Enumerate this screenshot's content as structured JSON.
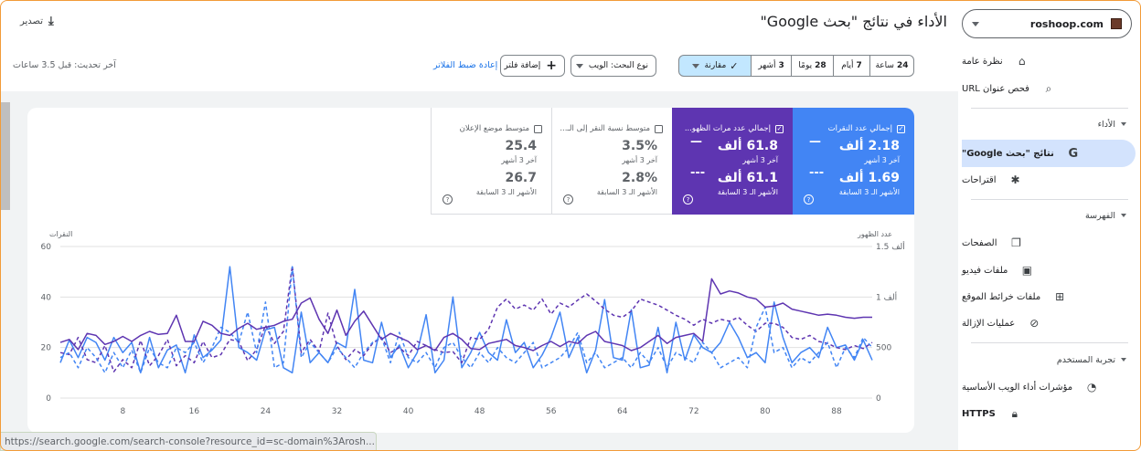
{
  "property": {
    "name": "roshoop.com"
  },
  "sidebar": {
    "overview": "نظرة عامة",
    "url_inspection": "فحص عنوان URL",
    "section_performance": "الأداء",
    "search_results": "نتائج \"بحث Google\"",
    "discover": "اقتراحات",
    "section_indexing": "الفهرسة",
    "pages": "الصفحات",
    "videos": "ملفات فيديو",
    "sitemaps": "ملفات خرائط الموقع",
    "removals": "عمليات الإزالة",
    "section_experience": "تجربة المستخدم",
    "cwv": "مؤشرات أداء الويب الأساسية",
    "https": "HTTPS"
  },
  "header": {
    "title": "الأداء في نتائج \"بحث Google\"",
    "export": "تصدير",
    "last_updated": "آخر تحديث: قبل 3.5 ساعات"
  },
  "filters": {
    "date_ranges": [
      {
        "num": "24",
        "unit": "ساعة"
      },
      {
        "num": "7",
        "unit": "أيام"
      },
      {
        "num": "28",
        "unit": "يومًا"
      },
      {
        "num": "3",
        "unit": "أشهر"
      }
    ],
    "compare": "مقارنة",
    "search_type": "نوع البحث: الويب",
    "add_filter": "إضافة فلتر",
    "reset": "إعادة ضبط الفلاتر"
  },
  "metrics": {
    "clicks": {
      "label": "إجمالي عدد النقرات",
      "value": "2.18 ألف",
      "period": "آخر 3 أشهر",
      "prev_value": "1.69 ألف",
      "prev_period": "الأشهر الـ 3 السابقة"
    },
    "impressions": {
      "label": "إجمالي عدد مرات الظهو...",
      "value": "61.8 ألف",
      "period": "آخر 3 أشهر",
      "prev_value": "61.1 ألف",
      "prev_period": "الأشهر الـ 3 السابقة"
    },
    "ctr": {
      "label": "متوسط نسبة النقر إلى الـ...",
      "value": "3.5%",
      "period": "آخر 3 أشهر",
      "prev_value": "2.8%",
      "prev_period": "الأشهر الـ 3 السابقة"
    },
    "position": {
      "label": "متوسط موضع الإعلان",
      "value": "25.4",
      "period": "آخر 3 أشهر",
      "prev_value": "26.7",
      "prev_period": "الأشهر الـ 3 السابقة"
    }
  },
  "chart_data": {
    "type": "line",
    "left_axis_label": "النقرات",
    "right_axis_label": "عدد الظهور",
    "left_ticks": [
      "60",
      "40",
      "20",
      "0"
    ],
    "right_ticks": [
      "1.5 ألف",
      "1 ألف",
      "500",
      "0"
    ],
    "x_ticks": [
      "8",
      "16",
      "24",
      "32",
      "40",
      "48",
      "56",
      "64",
      "72",
      "80",
      "88"
    ],
    "x_range": [
      1,
      92
    ],
    "ylim_clicks": [
      0,
      60
    ],
    "ylim_impressions": [
      0,
      1500
    ],
    "colors": {
      "clicks": "#4285f4",
      "impressions": "#5e35b1"
    },
    "series": [
      {
        "key": "clicks",
        "values": [
          14,
          23,
          16,
          24,
          22,
          15,
          24,
          18,
          22,
          10,
          24,
          12,
          19,
          21,
          10,
          25,
          16,
          19,
          23,
          52,
          20,
          18,
          15,
          27,
          28,
          12,
          10,
          34,
          14,
          18,
          14,
          22,
          20,
          43,
          15,
          14,
          30,
          16,
          21,
          12,
          18,
          33,
          10,
          15,
          40,
          12,
          18,
          26,
          18,
          15,
          31,
          18,
          22,
          12,
          17,
          24,
          34,
          16,
          24,
          10,
          19,
          39,
          16,
          15,
          35,
          12,
          13,
          28,
          10,
          30,
          15,
          25,
          20,
          18,
          22,
          30,
          24,
          16,
          18,
          14,
          38,
          24,
          14,
          18,
          20,
          16,
          28,
          20,
          21,
          15,
          23,
          15
        ]
      },
      {
        "key": "impressions",
        "dashed": true,
        "values": [
          450,
          430,
          600,
          380,
          350,
          520,
          260,
          380,
          300,
          570,
          320,
          420,
          580,
          320,
          420,
          350,
          560,
          400,
          430,
          580,
          560,
          370,
          480,
          720,
          540,
          660,
          1310,
          450,
          580,
          460,
          840,
          520,
          380,
          480,
          420,
          540,
          600,
          450,
          500,
          420,
          560,
          520,
          480,
          450,
          460,
          350,
          600,
          580,
          680,
          900,
          980,
          880,
          920,
          870,
          980,
          830,
          940,
          900,
          970,
          1030,
          960,
          880,
          820,
          800,
          860,
          980,
          950,
          920,
          870,
          820,
          780,
          720,
          780,
          740,
          780,
          760,
          800,
          720,
          660,
          740,
          740,
          700,
          600,
          580,
          620,
          560,
          540,
          500,
          480,
          520,
          490,
          550
        ]
      },
      {
        "key": "clicks_prev",
        "dashed": true,
        "values": [
          16,
          18,
          12,
          20,
          16,
          10,
          18,
          12,
          19,
          10,
          20,
          14,
          12,
          20,
          18,
          22,
          14,
          20,
          28,
          26,
          22,
          34,
          18,
          38,
          12,
          14,
          52,
          16,
          22,
          18,
          14,
          20,
          16,
          12,
          18,
          22,
          24,
          14,
          26,
          16,
          14,
          18,
          12,
          20,
          22,
          16,
          12,
          18,
          14,
          20,
          16,
          14,
          18,
          22,
          12,
          14,
          16,
          20,
          26,
          14,
          18,
          12,
          14,
          16,
          12,
          18,
          14,
          20,
          12,
          18,
          16,
          14,
          22,
          18,
          12,
          14,
          16,
          12,
          28,
          36,
          18,
          20,
          12,
          16,
          14,
          18,
          22,
          12,
          20,
          16,
          24,
          20
        ]
      },
      {
        "key": "impressions_prev",
        "values": [
          550,
          580,
          480,
          640,
          620,
          530,
          560,
          610,
          560,
          620,
          660,
          630,
          640,
          820,
          560,
          560,
          760,
          720,
          640,
          620,
          690,
          740,
          680,
          700,
          720,
          760,
          780,
          940,
          990,
          780,
          640,
          870,
          620,
          760,
          860,
          720,
          580,
          640,
          600,
          560,
          480,
          520,
          470,
          600,
          640,
          580,
          490,
          480,
          540,
          560,
          580,
          520,
          500,
          470,
          520,
          560,
          510,
          560,
          540,
          620,
          660,
          560,
          540,
          520,
          470,
          500,
          560,
          620,
          540,
          600,
          620,
          640,
          560,
          1180,
          1030,
          1060,
          1040,
          1000,
          980,
          900,
          910,
          940,
          880,
          860,
          840,
          820,
          830,
          820,
          800,
          790,
          800,
          800
        ]
      }
    ]
  },
  "status_url": "https://search.google.com/search-console?resource_id=sc-domain%3Arosh..."
}
